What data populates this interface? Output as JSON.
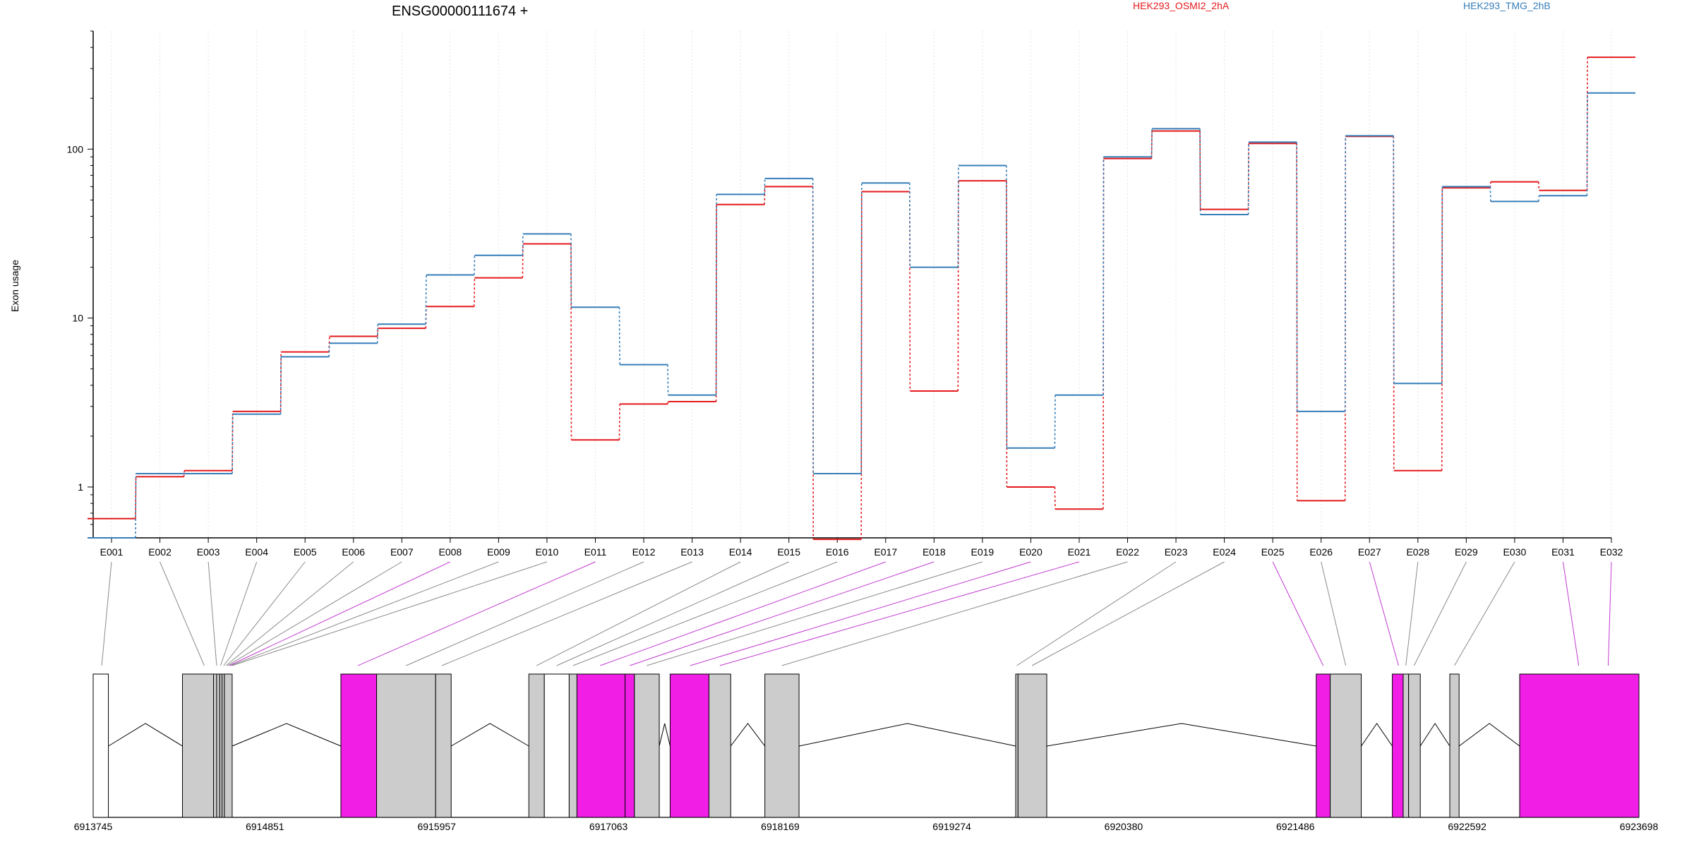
{
  "chart_data": {
    "type": "line",
    "title": "ENSG00000111674 +",
    "ylabel": "Exon usage",
    "y_scale": "log",
    "ylim": [
      0.5,
      500
    ],
    "y_ticks": [
      1,
      10,
      100
    ],
    "y_tick_labels": [
      "1",
      "10",
      "100"
    ],
    "legend_position": "top-right",
    "categories": [
      "E001",
      "E002",
      "E003",
      "E004",
      "E005",
      "E006",
      "E007",
      "E008",
      "E009",
      "E010",
      "E011",
      "E012",
      "E013",
      "E014",
      "E015",
      "E016",
      "E017",
      "E018",
      "E019",
      "E020",
      "E021",
      "E022",
      "E023",
      "E024",
      "E025",
      "E026",
      "E027",
      "E028",
      "E029",
      "E030",
      "E031",
      "E032"
    ],
    "series": [
      {
        "name": "HEK293_OSMI2_2hA",
        "color": "#e41a1c",
        "values": [
          0.65,
          1.15,
          1.25,
          2.8,
          6.3,
          7.8,
          8.7,
          11.7,
          17.3,
          27.5,
          1.9,
          3.1,
          3.2,
          47,
          60,
          0.49,
          56,
          3.7,
          65,
          1.0,
          0.74,
          88,
          128,
          44,
          108,
          0.83,
          119,
          1.25,
          59,
          64,
          57,
          350
        ]
      },
      {
        "name": "HEK293_TMG_2hB",
        "color": "#377eb8",
        "values": [
          0.5,
          1.2,
          1.2,
          2.7,
          5.9,
          7.1,
          9.2,
          18,
          23.5,
          31.5,
          11.6,
          5.3,
          3.5,
          54,
          67,
          1.2,
          63,
          20,
          80,
          1.7,
          3.5,
          90,
          132,
          41,
          110,
          2.8,
          120,
          4.1,
          60,
          49,
          53,
          215
        ]
      }
    ],
    "gene_model": {
      "axis_tick_labels": [
        "6913745",
        "6914851",
        "6915957",
        "6917063",
        "6918169",
        "6919274",
        "6920380",
        "6921486",
        "6922592",
        "6923698"
      ],
      "exon_color_normal": "#cccccc",
      "exon_color_significant": "#f11ee6",
      "exon_color_untested": "#ffffff"
    }
  }
}
